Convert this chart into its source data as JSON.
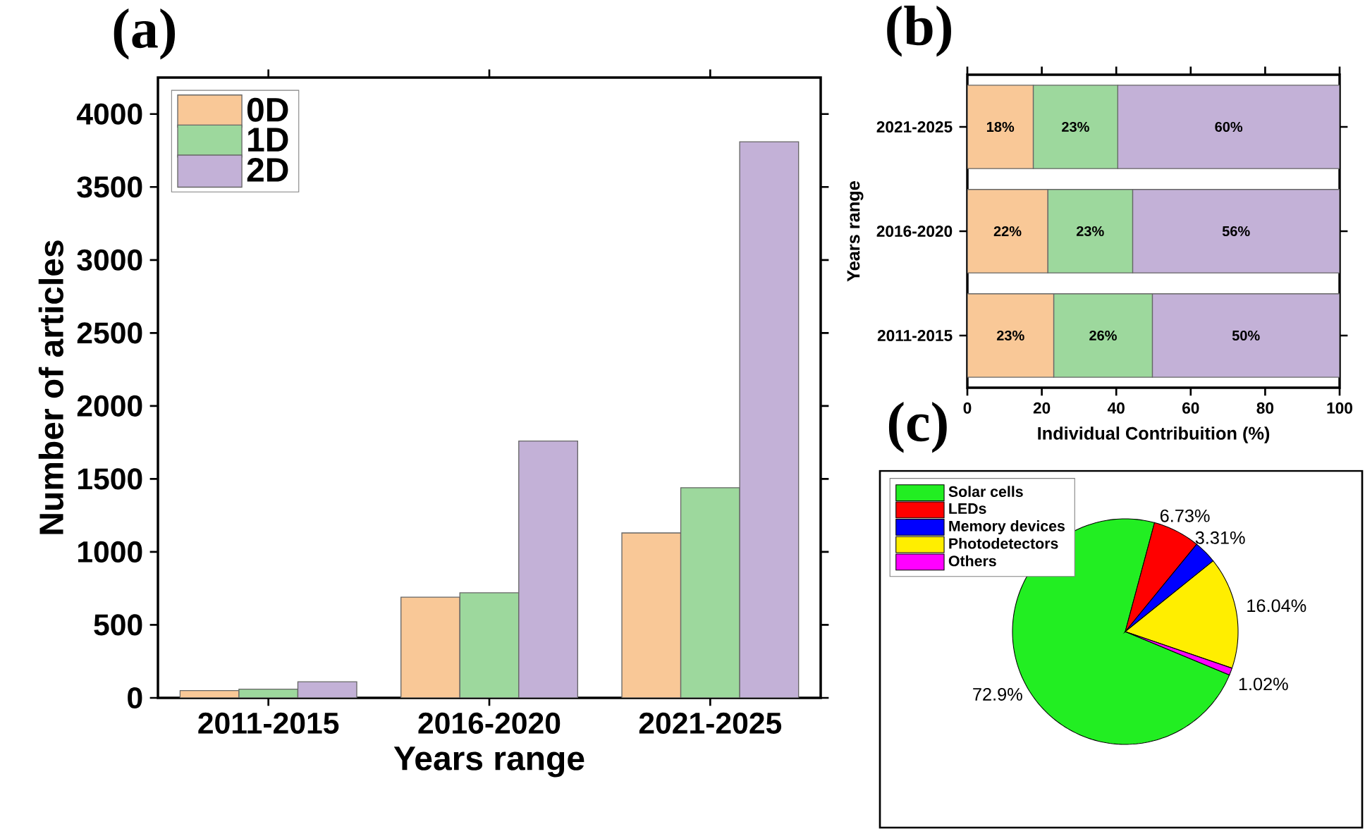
{
  "chart_data": [
    {
      "type": "bar",
      "title": "(a)",
      "xlabel": "Years range",
      "ylabel": "Number of articles",
      "categories": [
        "2011-2015",
        "2016-2020",
        "2021-2025"
      ],
      "series": [
        {
          "name": "0D",
          "color": "#f9c897",
          "values": [
            50,
            690,
            1130
          ]
        },
        {
          "name": "1D",
          "color": "#9dd89d",
          "values": [
            60,
            720,
            1440
          ]
        },
        {
          "name": "2D",
          "color": "#c3b1d7",
          "values": [
            110,
            1760,
            3810
          ]
        }
      ],
      "ylim": [
        0,
        4250
      ],
      "yticks": [
        0,
        500,
        1000,
        1500,
        2000,
        2500,
        3000,
        3500,
        4000
      ],
      "legend": "top left"
    },
    {
      "type": "bar",
      "title": "(b)",
      "orientation": "horizontal",
      "stacked": true,
      "xlabel": "Individual Contribuition (%)",
      "ylabel": "Years range",
      "categories": [
        "2021-2025",
        "2016-2020",
        "2011-2015"
      ],
      "series": [
        {
          "color": "#f9c897",
          "values": [
            17.7,
            21.6,
            23.2
          ],
          "value_labels": [
            "18%",
            "22%",
            "23%"
          ]
        },
        {
          "color": "#9dd89d",
          "values": [
            22.7,
            22.8,
            26.5
          ],
          "value_labels": [
            "23%",
            "23%",
            "26%"
          ]
        },
        {
          "color": "#c3b1d7",
          "values": [
            59.6,
            55.6,
            50.3
          ],
          "value_labels": [
            "60%",
            "56%",
            "50%"
          ]
        }
      ],
      "xlim": [
        0,
        100
      ],
      "xticks": [
        0,
        20,
        40,
        60,
        80,
        100
      ]
    },
    {
      "type": "pie",
      "title": "(c)",
      "categories": [
        "Solar cells",
        "LEDs",
        "Memory devices",
        "Photodetectors",
        "Others"
      ],
      "values": [
        72.9,
        6.73,
        3.31,
        16.04,
        1.02
      ],
      "colors": [
        "#22ee22",
        "#ff0000",
        "#0000ff",
        "#ffee00",
        "#ff00ff"
      ],
      "value_labels": [
        "72.9%",
        "6.73%",
        "3.31%",
        "16.04%",
        "1.02%"
      ],
      "legend": "top left"
    }
  ]
}
